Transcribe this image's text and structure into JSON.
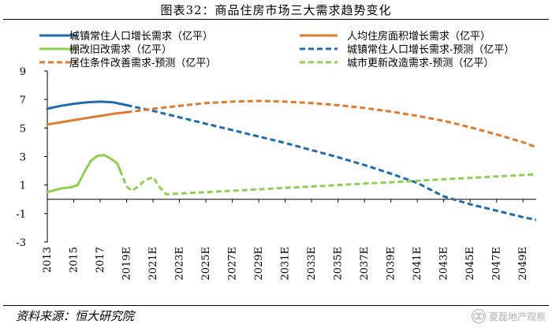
{
  "header": {
    "title": "图表32：商品住房市场三大需求趋势变化"
  },
  "footer": {
    "source": "资料来源：恒大研究院",
    "watermark": "夏磊地产观察"
  },
  "chart_data": {
    "type": "line",
    "title": "图表32：商品住房市场三大需求趋势变化",
    "xlabel": "",
    "ylabel": "",
    "x_start": 2013,
    "x_end": 2050,
    "x_tick_labels": [
      "2013",
      "2015",
      "2017",
      "2019E",
      "2021E",
      "2023E",
      "2025E",
      "2027E",
      "2029E",
      "2031E",
      "2033E",
      "2035E",
      "2037E",
      "2039E",
      "2041E",
      "2043E",
      "2045E",
      "2047E",
      "2049E"
    ],
    "y_ticks": [
      9,
      7,
      5,
      3,
      1,
      -1,
      -3
    ],
    "ylim": [
      -3,
      9
    ],
    "grid": false,
    "legend": [
      {
        "label": "城镇常住人口增长需求（亿平）",
        "color": "#1f6bb0",
        "dash": false
      },
      {
        "label": "人均住房面积增长需求（亿平）",
        "color": "#e07a2c",
        "dash": false
      },
      {
        "label": "棚改旧改需求（亿平）",
        "color": "#8fcf4f",
        "dash": false
      },
      {
        "label": "城镇常住人口增长需求-预测（亿平）",
        "color": "#1f6bb0",
        "dash": true
      },
      {
        "label": "居住条件改善需求-预测（亿平）",
        "color": "#e07a2c",
        "dash": true
      },
      {
        "label": "城市更新改造需求-预测（亿平）",
        "color": "#8fcf4f",
        "dash": true
      }
    ],
    "series": [
      {
        "name": "城镇常住人口增长需求（亿平）",
        "color": "#1f6bb0",
        "dash": false,
        "x": [
          2013,
          2014,
          2015,
          2016,
          2017,
          2018,
          2019
        ],
        "y": [
          6.35,
          6.55,
          6.7,
          6.8,
          6.85,
          6.8,
          6.6
        ]
      },
      {
        "name": "人均住房面积增长需求（亿平）",
        "color": "#e07a2c",
        "dash": false,
        "x": [
          2013,
          2014,
          2015,
          2016,
          2017,
          2018,
          2019
        ],
        "y": [
          5.25,
          5.4,
          5.55,
          5.7,
          5.85,
          6.0,
          6.1
        ]
      },
      {
        "name": "棚改旧改需求（亿平）",
        "color": "#8fcf4f",
        "dash": false,
        "x": [
          2013,
          2014,
          2014.8,
          2015.3,
          2015.8,
          2016.3,
          2016.8,
          2017.3,
          2017.8,
          2018.3,
          2018.5
        ],
        "y": [
          0.5,
          0.75,
          0.85,
          1.0,
          1.9,
          2.7,
          3.05,
          3.1,
          2.85,
          2.5,
          2.05
        ]
      },
      {
        "name": "城镇常住人口增长需求-预测（亿平）",
        "color": "#1f6bb0",
        "dash": true,
        "x": [
          2019,
          2021,
          2023,
          2025,
          2027,
          2029,
          2031,
          2033,
          2035,
          2037,
          2039,
          2041,
          2043,
          2045,
          2047,
          2049,
          2050
        ],
        "y": [
          6.6,
          6.2,
          5.75,
          5.3,
          4.85,
          4.4,
          3.95,
          3.45,
          2.95,
          2.4,
          1.8,
          1.15,
          0.2,
          -0.35,
          -0.8,
          -1.25,
          -1.45
        ]
      },
      {
        "name": "居住条件改善需求-预测（亿平）",
        "color": "#e07a2c",
        "dash": true,
        "x": [
          2019,
          2021,
          2023,
          2025,
          2027,
          2029,
          2031,
          2033,
          2035,
          2037,
          2039,
          2041,
          2043,
          2045,
          2047,
          2049,
          2050
        ],
        "y": [
          6.1,
          6.35,
          6.55,
          6.75,
          6.85,
          6.9,
          6.85,
          6.75,
          6.6,
          6.4,
          6.15,
          5.85,
          5.5,
          5.05,
          4.55,
          4.0,
          3.65
        ]
      },
      {
        "name": "城市更新改造需求-预测（亿平）",
        "color": "#8fcf4f",
        "dash": true,
        "x": [
          2018.5,
          2019,
          2019.4,
          2019.9,
          2020.4,
          2021,
          2021.5,
          2022,
          2023,
          2025,
          2027,
          2029,
          2031,
          2033,
          2035,
          2037,
          2039,
          2041,
          2043,
          2045,
          2047,
          2049,
          2050
        ],
        "y": [
          2.05,
          0.9,
          0.6,
          0.9,
          1.35,
          1.55,
          0.85,
          0.35,
          0.4,
          0.5,
          0.6,
          0.7,
          0.8,
          0.9,
          1.0,
          1.1,
          1.2,
          1.3,
          1.4,
          1.5,
          1.6,
          1.7,
          1.75
        ]
      }
    ]
  }
}
